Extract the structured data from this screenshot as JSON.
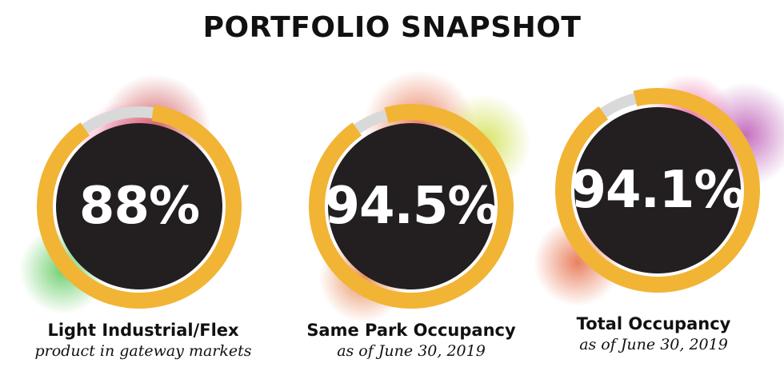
{
  "title": "PORTFOLIO SNAPSHOT",
  "chart_data": {
    "type": "gauge",
    "items": [
      {
        "value": 88,
        "display": "88%",
        "label": "Light Industrial/Flex",
        "sublabel": "product in gateway markets",
        "glow_colors": [
          "#c1272d",
          "#e8478b",
          "#3fbf3f"
        ]
      },
      {
        "value": 94.5,
        "display": "94.5%",
        "label": "Same Park Occupancy",
        "sublabel": "as of June 30, 2019",
        "glow_colors": [
          "#e2572b",
          "#c9d928",
          "#e06a2c"
        ]
      },
      {
        "value": 94.1,
        "display": "94.1%",
        "label": "Total Occupancy",
        "sublabel": "as of June 30, 2019",
        "glow_colors": [
          "#b13fa8",
          "#e8478b",
          "#e2572b"
        ]
      }
    ],
    "colors": {
      "ring": "#f2b434",
      "track": "#d9d9d9",
      "disc": "#231f20",
      "value_text": "#ffffff"
    }
  }
}
